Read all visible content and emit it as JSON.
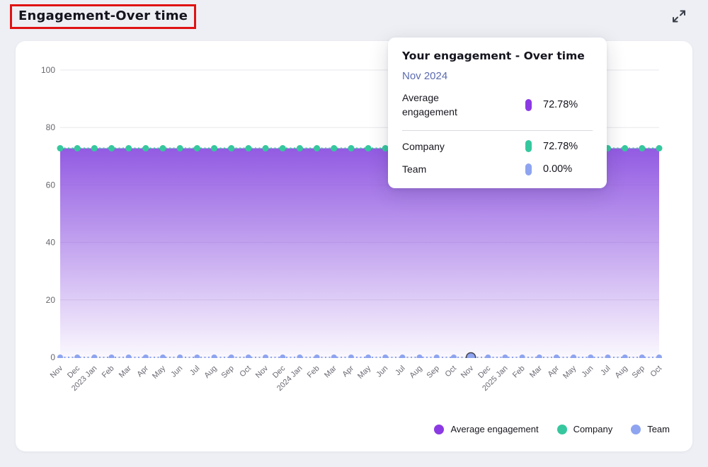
{
  "header": {
    "title": "Engagement-Over time"
  },
  "expand_button": {
    "icon": "expand-arrows-icon"
  },
  "tooltip": {
    "title": "Your engagement - Over time",
    "date": "Nov 2024",
    "rows": [
      {
        "label": "Average engagement",
        "value": "72.78%",
        "color": "#8b3ae3",
        "section": "main"
      },
      {
        "label": "Company",
        "value": "72.78%",
        "color": "#36c79e",
        "section": "sub"
      },
      {
        "label": "Team",
        "value": "0.00%",
        "color": "#8ea4f0",
        "section": "sub"
      }
    ]
  },
  "legend": {
    "items": [
      {
        "label": "Average engagement",
        "color": "#8b3ae3"
      },
      {
        "label": "Company",
        "color": "#36c79e"
      },
      {
        "label": "Team",
        "color": "#8ea4f0"
      }
    ]
  },
  "colors": {
    "page_bg": "#edeff4",
    "card_bg": "#ffffff",
    "grid": "#e8e8ec",
    "axis_text": "#67676f",
    "highlight_box": "#e01212",
    "hover_ring": "#42424c"
  },
  "chart_data": {
    "type": "area",
    "title": "Engagement-Over time",
    "x": [
      "Nov",
      "Dec",
      "2023 Jan",
      "Feb",
      "Mar",
      "Apr",
      "May",
      "Jun",
      "Jul",
      "Aug",
      "Sep",
      "Oct",
      "Nov",
      "Dec",
      "2024 Jan",
      "Feb",
      "Mar",
      "Apr",
      "May",
      "Jun",
      "Jul",
      "Aug",
      "Sep",
      "Oct",
      "Nov",
      "Dec",
      "2025 Jan",
      "Feb",
      "Mar",
      "Apr",
      "May",
      "Jun",
      "Jul",
      "Aug",
      "Sep",
      "Oct"
    ],
    "ylim": [
      0,
      100
    ],
    "yticks": [
      0,
      20,
      40,
      60,
      80,
      100
    ],
    "grid": "horizontal",
    "legend_position": "bottom-right",
    "hover_index": 24,
    "hover_label": "Nov 2024",
    "series": [
      {
        "name": "Average engagement",
        "style": "area",
        "color": "#8b3ae3",
        "area_top_color": "#8d52e1",
        "values": [
          72.78,
          72.78,
          72.78,
          72.78,
          72.78,
          72.78,
          72.78,
          72.78,
          72.78,
          72.78,
          72.78,
          72.78,
          72.78,
          72.78,
          72.78,
          72.78,
          72.78,
          72.78,
          72.78,
          72.78,
          72.78,
          72.78,
          72.78,
          72.78,
          72.78,
          72.78,
          72.78,
          72.78,
          72.78,
          72.78,
          72.78,
          72.78,
          72.78,
          72.78,
          72.78,
          72.78
        ]
      },
      {
        "name": "Company",
        "style": "dotted-line",
        "color": "#36c79e",
        "values": [
          72.78,
          72.78,
          72.78,
          72.78,
          72.78,
          72.78,
          72.78,
          72.78,
          72.78,
          72.78,
          72.78,
          72.78,
          72.78,
          72.78,
          72.78,
          72.78,
          72.78,
          72.78,
          72.78,
          72.78,
          72.78,
          72.78,
          72.78,
          72.78,
          72.78,
          72.78,
          72.78,
          72.78,
          72.78,
          72.78,
          72.78,
          72.78,
          72.78,
          72.78,
          72.78,
          72.78
        ]
      },
      {
        "name": "Team",
        "style": "dotted-line",
        "color": "#8ea4f0",
        "values": [
          0,
          0,
          0,
          0,
          0,
          0,
          0,
          0,
          0,
          0,
          0,
          0,
          0,
          0,
          0,
          0,
          0,
          0,
          0,
          0,
          0,
          0,
          0,
          0,
          0,
          0,
          0,
          0,
          0,
          0,
          0,
          0,
          0,
          0,
          0,
          0
        ]
      }
    ]
  }
}
